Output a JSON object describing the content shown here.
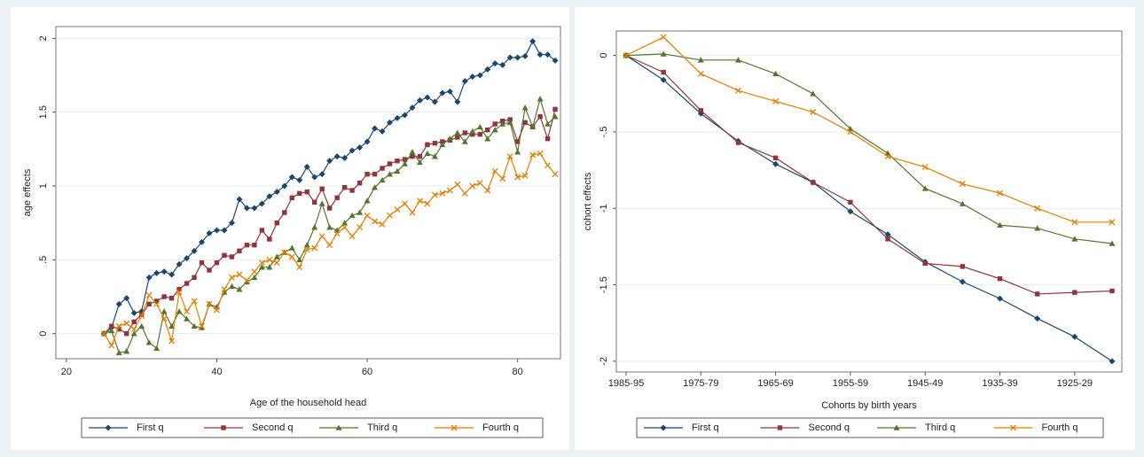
{
  "chart_data": [
    {
      "type": "line",
      "ylabel": "age effects",
      "xlabel": "Age of the household head",
      "x": [
        25,
        26,
        27,
        28,
        29,
        30,
        31,
        32,
        33,
        34,
        35,
        36,
        37,
        38,
        39,
        40,
        41,
        42,
        43,
        44,
        45,
        46,
        47,
        48,
        49,
        50,
        51,
        52,
        53,
        54,
        55,
        56,
        57,
        58,
        59,
        60,
        61,
        62,
        63,
        64,
        65,
        66,
        67,
        68,
        69,
        70,
        71,
        72,
        73,
        74,
        75,
        76,
        77,
        78,
        79,
        80,
        81,
        82,
        83,
        84,
        85
      ],
      "series": [
        {
          "name": "First q",
          "color": "#1a476f",
          "marker": "diamond",
          "values": [
            0,
            0.04,
            0.2,
            0.24,
            0.14,
            0.15,
            0.38,
            0.41,
            0.42,
            0.4,
            0.47,
            0.51,
            0.56,
            0.62,
            0.68,
            0.7,
            0.7,
            0.75,
            0.91,
            0.85,
            0.85,
            0.88,
            0.93,
            0.96,
            1.0,
            1.06,
            1.04,
            1.13,
            1.06,
            1.08,
            1.17,
            1.2,
            1.19,
            1.24,
            1.26,
            1.3,
            1.39,
            1.37,
            1.43,
            1.46,
            1.48,
            1.53,
            1.58,
            1.6,
            1.57,
            1.63,
            1.64,
            1.57,
            1.71,
            1.74,
            1.75,
            1.79,
            1.83,
            1.82,
            1.87,
            1.87,
            1.88,
            1.98,
            1.89,
            1.89,
            1.85
          ]
        },
        {
          "name": "Second q",
          "color": "#90353b",
          "marker": "square",
          "values": [
            0,
            0.05,
            0.03,
            0,
            0.08,
            0.13,
            0.2,
            0.22,
            0.25,
            0.24,
            0.3,
            0.34,
            0.38,
            0.48,
            0.43,
            0.48,
            0.53,
            0.52,
            0.56,
            0.6,
            0.6,
            0.7,
            0.64,
            0.75,
            0.82,
            0.92,
            0.95,
            0.96,
            0.89,
            0.98,
            0.85,
            0.92,
            0.99,
            0.97,
            1.02,
            1.08,
            1.08,
            1.12,
            1.15,
            1.17,
            1.18,
            1.2,
            1.2,
            1.28,
            1.29,
            1.3,
            1.31,
            1.33,
            1.36,
            1.35,
            1.35,
            1.38,
            1.42,
            1.44,
            1.45,
            1.3,
            1.43,
            1.4,
            1.47,
            1.32,
            1.52
          ]
        },
        {
          "name": "Third q",
          "color": "#55752f",
          "marker": "triangle",
          "values": [
            0,
            0.02,
            -0.13,
            -0.12,
            0,
            0.05,
            -0.06,
            -0.1,
            0.15,
            0.05,
            0.15,
            0.1,
            0.05,
            0.04,
            0.2,
            0.18,
            0.28,
            0.32,
            0.3,
            0.35,
            0.38,
            0.45,
            0.45,
            0.52,
            0.55,
            0.58,
            0.5,
            0.6,
            0.72,
            0.88,
            0.72,
            0.7,
            0.75,
            0.8,
            0.82,
            0.9,
            0.99,
            1.04,
            1.08,
            1.1,
            1.15,
            1.23,
            1.16,
            1.22,
            1.2,
            1.28,
            1.32,
            1.36,
            1.3,
            1.37,
            1.4,
            1.32,
            1.38,
            1.42,
            1.43,
            1.23,
            1.53,
            1.4,
            1.59,
            1.42,
            1.47
          ]
        },
        {
          "name": "Fourth q",
          "color": "#e37e00",
          "marker": "x",
          "values": [
            0,
            -0.08,
            0.05,
            0.07,
            0.03,
            0.12,
            0.26,
            0.2,
            0.1,
            -0.05,
            0.28,
            0.15,
            0.22,
            0.05,
            0.2,
            0.16,
            0.3,
            0.38,
            0.4,
            0.36,
            0.42,
            0.48,
            0.5,
            0.48,
            0.55,
            0.52,
            0.45,
            0.57,
            0.58,
            0.66,
            0.6,
            0.68,
            0.72,
            0.66,
            0.72,
            0.8,
            0.76,
            0.74,
            0.8,
            0.84,
            0.88,
            0.82,
            0.9,
            0.88,
            0.94,
            0.95,
            0.97,
            1.01,
            0.95,
            1.0,
            1.02,
            0.97,
            1.1,
            1.05,
            1.2,
            1.06,
            1.07,
            1.21,
            1.22,
            1.14,
            1.08
          ]
        }
      ],
      "xlim": [
        18.6,
        85.7
      ],
      "xticks": [
        20,
        40,
        60,
        80
      ],
      "ylim": [
        -0.17,
        2.08
      ],
      "yticks": [
        0,
        {
          "value": 0.5,
          "label": ".5"
        },
        1,
        1.5,
        2
      ],
      "grid": true,
      "legend": "bottom"
    },
    {
      "type": "line",
      "ylabel": "cohort effects",
      "xlabel": "Cohorts by birth years",
      "categories": [
        "1985-95",
        null,
        "1975-79",
        null,
        "1965-69",
        null,
        "1955-59",
        null,
        "1945-49",
        null,
        "1935-39",
        null,
        "1925-29",
        null
      ],
      "series": [
        {
          "name": "First q",
          "color": "#1a476f",
          "marker": "diamond",
          "values": [
            0,
            -0.16,
            -0.38,
            -0.56,
            -0.71,
            -0.83,
            -1.02,
            -1.17,
            -1.35,
            -1.48,
            -1.59,
            -1.72,
            -1.84,
            -2.0
          ]
        },
        {
          "name": "Second q",
          "color": "#90353b",
          "marker": "square",
          "values": [
            0,
            -0.11,
            -0.36,
            -0.57,
            -0.67,
            -0.83,
            -0.96,
            -1.2,
            -1.36,
            -1.38,
            -1.46,
            -1.56,
            -1.55,
            -1.54
          ]
        },
        {
          "name": "Third q",
          "color": "#55752f",
          "marker": "triangle",
          "values": [
            0,
            0.01,
            -0.03,
            -0.03,
            -0.12,
            -0.25,
            -0.48,
            -0.64,
            -0.87,
            -0.97,
            -1.11,
            -1.13,
            -1.2,
            -1.23
          ]
        },
        {
          "name": "Fourth q",
          "color": "#e37e00",
          "marker": "x",
          "values": [
            0,
            0.12,
            -0.12,
            -0.23,
            -0.3,
            -0.37,
            -0.5,
            -0.66,
            -0.73,
            -0.84,
            -0.9,
            -1.0,
            -1.09,
            -1.09
          ]
        }
      ],
      "ylim": [
        -2.07,
        0.16
      ],
      "yticks": [
        {
          "value": -2,
          "label": "-2"
        },
        {
          "value": -1.5,
          "label": "-1.5"
        },
        {
          "value": -1,
          "label": "-1"
        },
        {
          "value": -0.5,
          "label": "-.5"
        },
        0
      ],
      "grid": true,
      "legend": "bottom"
    }
  ]
}
